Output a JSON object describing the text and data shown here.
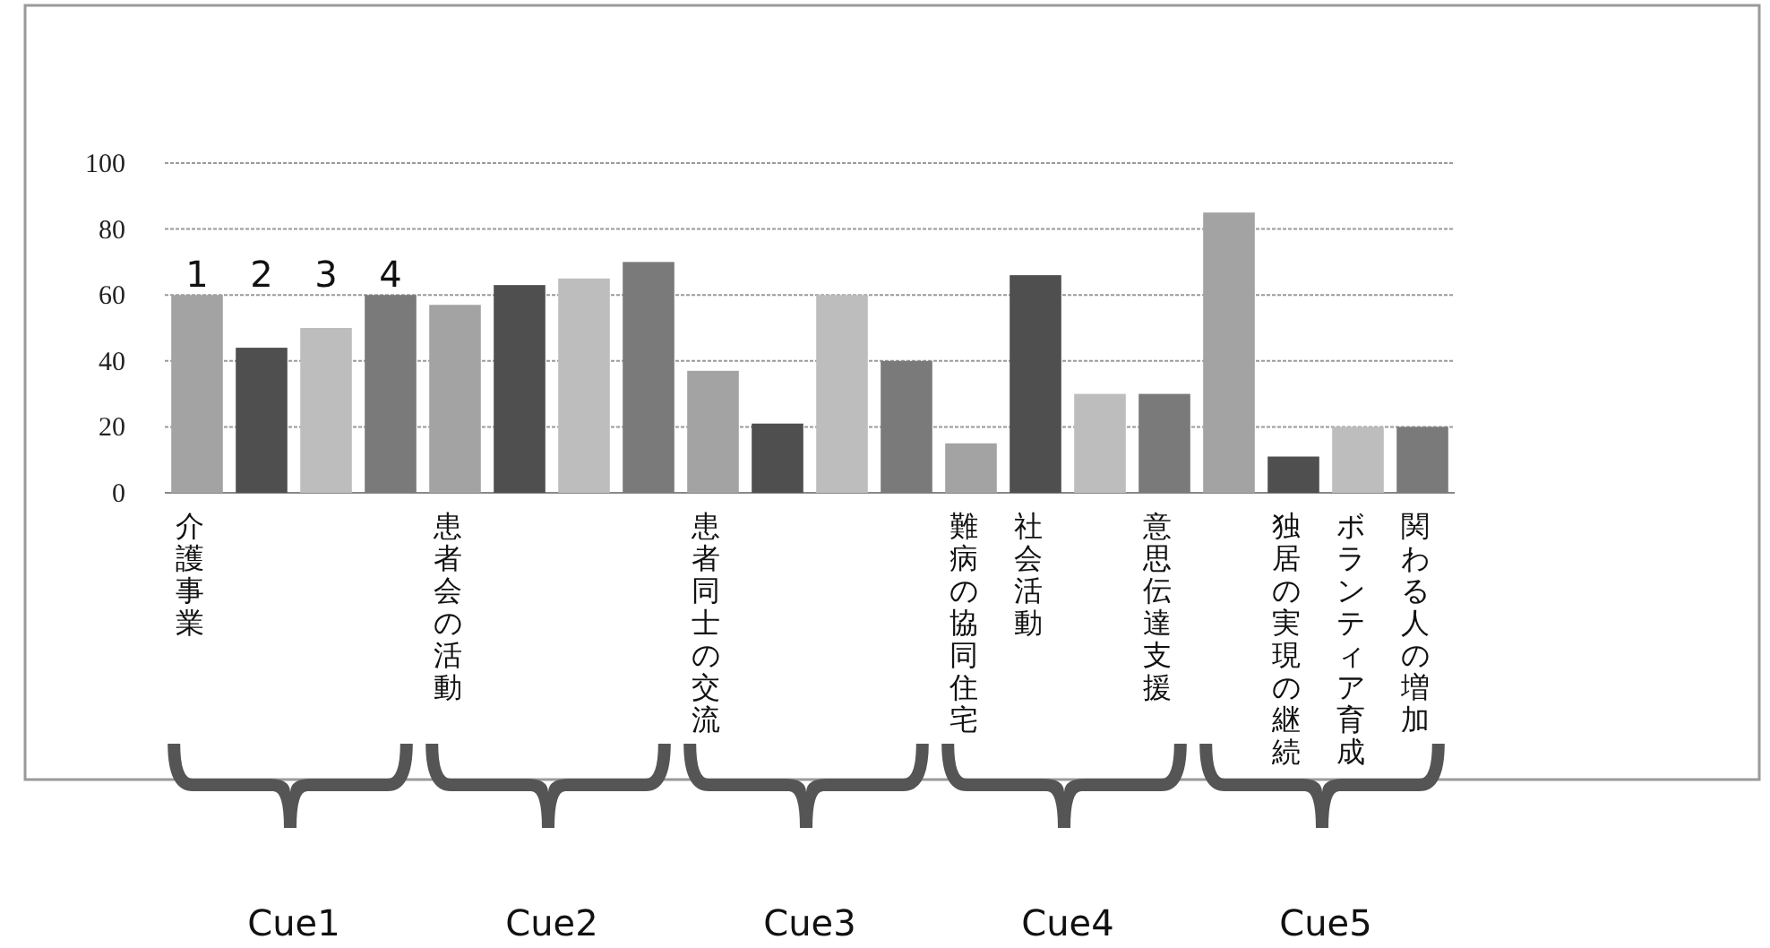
{
  "chart_data": {
    "type": "bar",
    "categories": [
      "介護事業",
      null,
      null,
      null,
      "患者会の活動",
      null,
      null,
      null,
      "患者同士の交流",
      null,
      null,
      null,
      "難病の協同住宅",
      "社会活動",
      null,
      "意思伝達支援",
      null,
      "独居の実現の継続",
      "ボランティア育成",
      "関わる人の増加"
    ],
    "values": [
      60,
      44,
      50,
      60,
      57,
      63,
      65,
      70,
      37,
      21,
      60,
      40,
      15,
      66,
      30,
      30,
      85,
      11,
      20,
      20
    ],
    "colors": [
      "#a3a3a3",
      "#4f4f4f",
      "#bdbdbd",
      "#7a7a7a",
      "#a3a3a3",
      "#4f4f4f",
      "#bdbdbd",
      "#7a7a7a",
      "#a3a3a3",
      "#4f4f4f",
      "#bdbdbd",
      "#7a7a7a",
      "#a3a3a3",
      "#4f4f4f",
      "#bdbdbd",
      "#7a7a7a",
      "#a3a3a3",
      "#4f4f4f",
      "#bdbdbd",
      "#7a7a7a"
    ],
    "ylim": [
      0,
      100
    ],
    "yticks": [
      0,
      20,
      40,
      60,
      80,
      100
    ],
    "grid": "y",
    "annotations": [
      "1",
      "2",
      "3",
      "4",
      "Cue1",
      "Cue2",
      "Cue3",
      "Cue4",
      "Cue5"
    ]
  }
}
